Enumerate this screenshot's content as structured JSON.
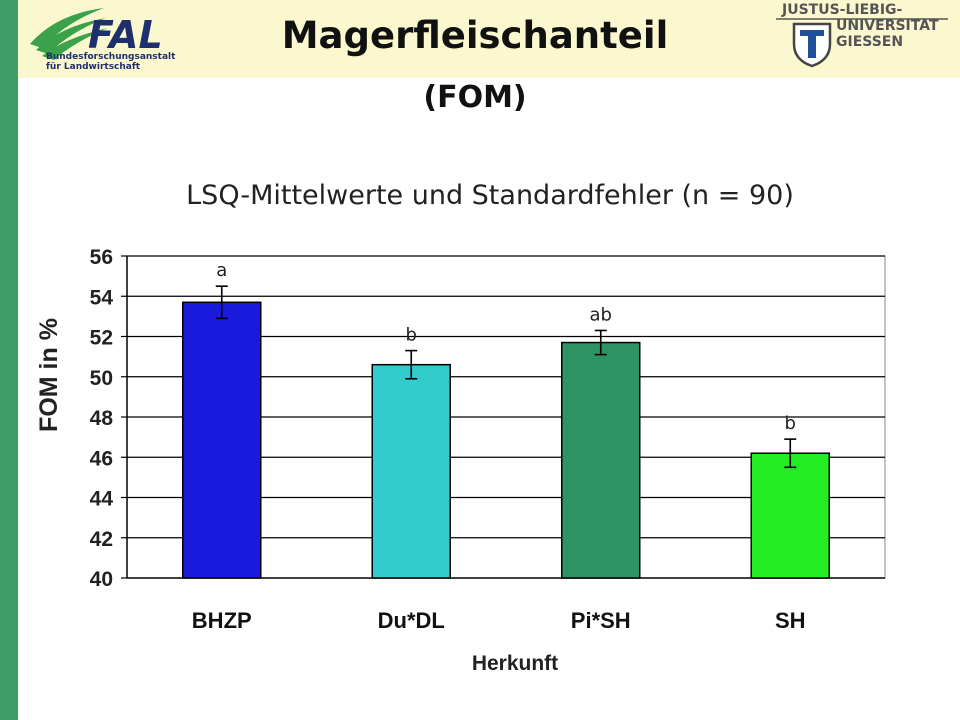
{
  "header": {
    "fal_logo_text": "FAL",
    "fal_sub_line1": "Bundesforschungsanstalt",
    "fal_sub_line2": "für Landwirtschaft",
    "uni_line1": "JUSTUS-LIEBIG-",
    "uni_line2": "UNIVERSITAT",
    "uni_line3": "GIESSEN",
    "uni_logo_letter": "T",
    "title": "Magerfleischanteil",
    "title_sub": "(FOM)"
  },
  "colors": {
    "left_bar": "#3f9d68",
    "header_band": "#fbf8cf",
    "fal_navy": "#1e2f6e",
    "fal_green": "#3aa24a"
  },
  "chart_data": {
    "type": "bar",
    "title": "LSQ-Mittelwerte und Standardfehler (n = 90)",
    "xlabel": "Herkunft",
    "ylabel": "FOM in %",
    "ylim": [
      40,
      56
    ],
    "yticks": [
      40,
      42,
      44,
      46,
      48,
      50,
      52,
      54,
      56
    ],
    "grid": true,
    "categories": [
      "BHZP",
      "Du*DL",
      "Pi*SH",
      "SH"
    ],
    "values": [
      53.7,
      50.6,
      51.7,
      46.2
    ],
    "errors": [
      0.8,
      0.7,
      0.6,
      0.7
    ],
    "significance_labels": [
      "a",
      "b",
      "ab",
      "b"
    ],
    "bar_colors": [
      "#1a1adc",
      "#33cccc",
      "#2e9466",
      "#22ee22"
    ]
  }
}
